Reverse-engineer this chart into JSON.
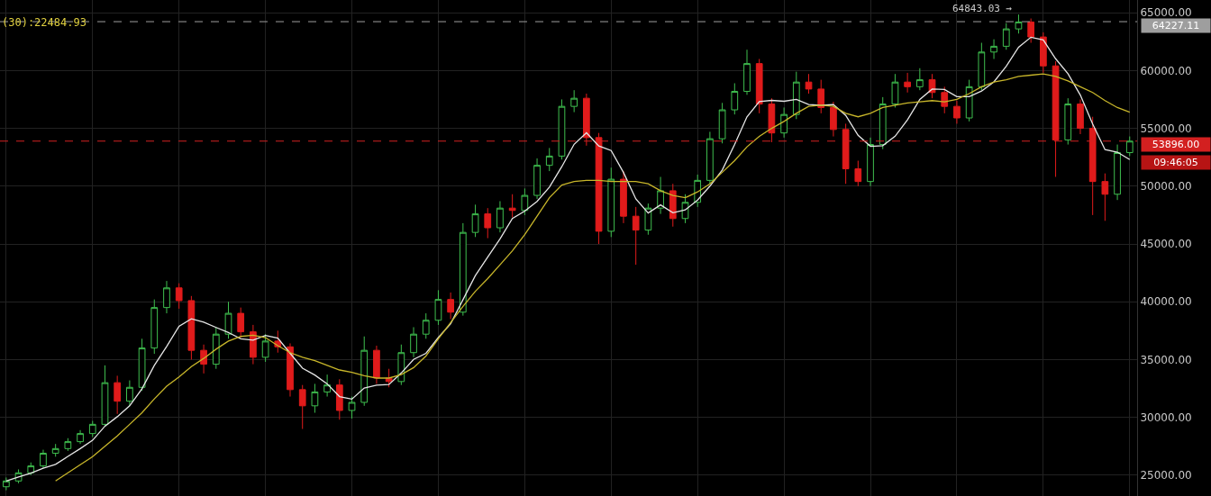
{
  "chart_data": {
    "type": "candlestick",
    "categories": [
      null,
      null,
      null,
      null,
      null,
      null,
      null,
      null,
      null,
      null,
      null,
      null,
      null,
      null,
      null,
      null,
      null,
      null,
      null,
      null,
      null,
      null,
      null,
      null,
      null,
      null,
      null,
      null,
      null,
      null,
      null,
      null,
      null,
      null,
      null,
      null,
      null,
      null,
      null,
      null,
      null,
      null,
      null,
      null,
      null,
      null,
      null,
      null,
      null,
      null,
      null,
      null,
      null,
      null,
      null,
      null,
      null,
      null,
      null,
      null,
      null,
      null,
      null,
      null,
      null,
      null,
      null,
      null,
      null,
      null,
      null,
      null,
      null,
      null,
      null,
      null,
      null,
      null,
      null,
      null,
      null,
      null,
      null,
      null,
      null,
      null,
      null,
      null,
      null,
      null,
      null,
      null
    ],
    "ohlc": [
      [
        24000,
        24800,
        23700,
        24500
      ],
      [
        24500,
        25500,
        24300,
        25200
      ],
      [
        25200,
        26100,
        25000,
        25800
      ],
      [
        25800,
        27200,
        25600,
        26900
      ],
      [
        26900,
        27700,
        26600,
        27300
      ],
      [
        27300,
        28200,
        27100,
        27900
      ],
      [
        27900,
        28900,
        27700,
        28600
      ],
      [
        28600,
        29700,
        28300,
        29400
      ],
      [
        29400,
        34500,
        29200,
        33000
      ],
      [
        33000,
        33600,
        30300,
        31400
      ],
      [
        31400,
        33200,
        31000,
        32600
      ],
      [
        32600,
        36800,
        32300,
        36000
      ],
      [
        36000,
        40200,
        35500,
        39500
      ],
      [
        39500,
        41800,
        39000,
        41200
      ],
      [
        41200,
        41600,
        39400,
        40100
      ],
      [
        40100,
        40500,
        35000,
        35800
      ],
      [
        35800,
        36300,
        33800,
        34600
      ],
      [
        34600,
        37800,
        34200,
        37200
      ],
      [
        37200,
        40000,
        36800,
        39000
      ],
      [
        39000,
        39500,
        36900,
        37400
      ],
      [
        37400,
        38000,
        34600,
        35200
      ],
      [
        35200,
        37200,
        34800,
        36600
      ],
      [
        36600,
        37500,
        35600,
        36100
      ],
      [
        36100,
        36400,
        31800,
        32400
      ],
      [
        32400,
        32800,
        29000,
        31000
      ],
      [
        31000,
        32900,
        30400,
        32200
      ],
      [
        32200,
        33700,
        31800,
        32800
      ],
      [
        32800,
        33300,
        29800,
        30600
      ],
      [
        30600,
        31800,
        29900,
        31300
      ],
      [
        31300,
        37000,
        31000,
        35800
      ],
      [
        35800,
        36200,
        32900,
        33400
      ],
      [
        33400,
        34200,
        32600,
        33100
      ],
      [
        33100,
        36300,
        32800,
        35600
      ],
      [
        35600,
        37800,
        35200,
        37200
      ],
      [
        37200,
        39000,
        36800,
        38400
      ],
      [
        38400,
        41000,
        38000,
        40200
      ],
      [
        40200,
        40800,
        38500,
        39100
      ],
      [
        39100,
        46800,
        38800,
        46000
      ],
      [
        46000,
        48400,
        45600,
        47600
      ],
      [
        47600,
        48100,
        45500,
        46400
      ],
      [
        46400,
        48700,
        46000,
        48100
      ],
      [
        48100,
        49300,
        47300,
        47900
      ],
      [
        47900,
        49800,
        47500,
        49200
      ],
      [
        49200,
        52400,
        48900,
        51800
      ],
      [
        51800,
        53300,
        51300,
        52600
      ],
      [
        52600,
        57500,
        52300,
        56900
      ],
      [
        56900,
        58300,
        56400,
        57600
      ],
      [
        57600,
        58000,
        53500,
        54200
      ],
      [
        54200,
        54600,
        45000,
        46100
      ],
      [
        46100,
        51600,
        45600,
        50600
      ],
      [
        50600,
        51300,
        46800,
        47400
      ],
      [
        47400,
        48200,
        43200,
        46200
      ],
      [
        46200,
        48500,
        45800,
        48100
      ],
      [
        48100,
        50800,
        47600,
        49600
      ],
      [
        49600,
        50200,
        46500,
        47200
      ],
      [
        47200,
        49300,
        46800,
        48600
      ],
      [
        48600,
        51000,
        48200,
        50500
      ],
      [
        50500,
        54700,
        50200,
        54100
      ],
      [
        54100,
        57200,
        53700,
        56600
      ],
      [
        56600,
        58900,
        56200,
        58200
      ],
      [
        58200,
        61800,
        57900,
        60600
      ],
      [
        60600,
        61000,
        56300,
        57100
      ],
      [
        57100,
        57600,
        53800,
        54600
      ],
      [
        54600,
        56800,
        54200,
        56200
      ],
      [
        56200,
        59900,
        55800,
        59000
      ],
      [
        59000,
        59700,
        58000,
        58400
      ],
      [
        58400,
        59200,
        56300,
        56800
      ],
      [
        56800,
        57300,
        54300,
        54900
      ],
      [
        54900,
        55400,
        50200,
        51500
      ],
      [
        51500,
        52200,
        50000,
        50400
      ],
      [
        50400,
        54200,
        50000,
        53600
      ],
      [
        53600,
        57700,
        53200,
        57100
      ],
      [
        57100,
        59700,
        56800,
        59000
      ],
      [
        59000,
        59800,
        58100,
        58600
      ],
      [
        58600,
        60200,
        58300,
        59200
      ],
      [
        59200,
        59700,
        57600,
        58100
      ],
      [
        58100,
        58600,
        56300,
        56900
      ],
      [
        56900,
        57400,
        55400,
        55900
      ],
      [
        55900,
        59200,
        55600,
        58600
      ],
      [
        58600,
        62400,
        58300,
        61600
      ],
      [
        61600,
        62700,
        61000,
        62100
      ],
      [
        62100,
        64100,
        61800,
        63600
      ],
      [
        63600,
        64843.03,
        63200,
        64200
      ],
      [
        64200,
        64500,
        62400,
        62900
      ],
      [
        62900,
        63300,
        59800,
        60400
      ],
      [
        60400,
        60800,
        50800,
        54000
      ],
      [
        54000,
        57600,
        53600,
        57100
      ],
      [
        57100,
        57500,
        54500,
        55000
      ],
      [
        55000,
        56000,
        47500,
        50400
      ],
      [
        50400,
        51100,
        47000,
        49300
      ],
      [
        49300,
        53600,
        48800,
        52900
      ],
      [
        52900,
        54300,
        52600,
        53896
      ]
    ],
    "colors": [
      "#3fbf4f",
      "#3fbf4f",
      "#3fbf4f",
      "#3fbf4f",
      "#3fbf4f",
      "#3fbf4f",
      "#3fbf4f",
      "#3fbf4f",
      "#3fbf4f",
      "#e01b1b",
      "#3fbf4f",
      "#3fbf4f",
      "#3fbf4f",
      "#3fbf4f",
      "#e01b1b",
      "#e01b1b",
      "#e01b1b",
      "#3fbf4f",
      "#3fbf4f",
      "#e01b1b",
      "#e01b1b",
      "#3fbf4f",
      "#e01b1b",
      "#e01b1b",
      "#e01b1b",
      "#3fbf4f",
      "#3fbf4f",
      "#e01b1b",
      "#3fbf4f",
      "#3fbf4f",
      "#e01b1b",
      "#e01b1b",
      "#3fbf4f",
      "#3fbf4f",
      "#3fbf4f",
      "#3fbf4f",
      "#e01b1b",
      "#3fbf4f",
      "#3fbf4f",
      "#e01b1b",
      "#3fbf4f",
      "#e01b1b",
      "#3fbf4f",
      "#3fbf4f",
      "#3fbf4f",
      "#3fbf4f",
      "#3fbf4f",
      "#e01b1b",
      "#e01b1b",
      "#3fbf4f",
      "#e01b1b",
      "#e01b1b",
      "#3fbf4f",
      "#3fbf4f",
      "#e01b1b",
      "#3fbf4f",
      "#3fbf4f",
      "#3fbf4f",
      "#3fbf4f",
      "#3fbf4f",
      "#3fbf4f",
      "#e01b1b",
      "#e01b1b",
      "#3fbf4f",
      "#3fbf4f",
      "#e01b1b",
      "#e01b1b",
      "#e01b1b",
      "#e01b1b",
      "#e01b1b",
      "#3fbf4f",
      "#3fbf4f",
      "#3fbf4f",
      "#e01b1b",
      "#3fbf4f",
      "#e01b1b",
      "#e01b1b",
      "#e01b1b",
      "#3fbf4f",
      "#3fbf4f",
      "#3fbf4f",
      "#3fbf4f",
      "#3fbf4f",
      "#e01b1b",
      "#e01b1b",
      "#e01b1b",
      "#3fbf4f",
      "#e01b1b",
      "#e01b1b",
      "#e01b1b",
      "#3fbf4f",
      "#3fbf4f"
    ],
    "series": [
      {
        "type": "line",
        "color": "#e6e6e6",
        "values": [
          24500,
          24850,
          25170,
          25600,
          25940,
          26620,
          27300,
          28020,
          29240,
          30060,
          31000,
          32480,
          34500,
          36140,
          37880,
          38520,
          38240,
          37780,
          37340,
          36800,
          36680,
          37080,
          36860,
          35540,
          34260,
          33660,
          32900,
          31800,
          31580,
          32540,
          32780,
          32840,
          33840,
          35020,
          35540,
          36900,
          38100,
          40180,
          42260,
          43860,
          45440,
          47200,
          47840,
          48680,
          49920,
          51680,
          53620,
          54620,
          53480,
          53080,
          51180,
          48900,
          47680,
          48380,
          47700,
          47940,
          48800,
          50000,
          51400,
          53600,
          56000,
          57320,
          57420,
          57340,
          57500,
          57060,
          57000,
          57060,
          56120,
          54400,
          53440,
          53500,
          54320,
          55740,
          57500,
          58400,
          58360,
          57740,
          57740,
          58220,
          59020,
          60360,
          62020,
          62880,
          62640,
          61020,
          59720,
          57880,
          55380,
          53160,
          52940,
          52300
        ]
      },
      {
        "type": "line",
        "color": "#c8b62a",
        "values": [
          null,
          null,
          null,
          null,
          24500,
          25200,
          25900,
          26600,
          27500,
          28400,
          29400,
          30400,
          31600,
          32700,
          33500,
          34400,
          35100,
          35900,
          36600,
          37000,
          37100,
          36900,
          36200,
          35600,
          35200,
          34900,
          34500,
          34100,
          33900,
          33600,
          33400,
          33400,
          33700,
          34300,
          35300,
          36800,
          38200,
          39600,
          40900,
          42000,
          43200,
          44400,
          45800,
          47400,
          49000,
          50100,
          50400,
          50500,
          50500,
          50400,
          50400,
          50400,
          50200,
          49600,
          49200,
          49000,
          49500,
          50200,
          51200,
          52200,
          53400,
          54300,
          55000,
          55600,
          56300,
          56900,
          57000,
          56900,
          56300,
          56000,
          56300,
          56800,
          57000,
          57200,
          57300,
          57400,
          57300,
          57500,
          58000,
          58600,
          59000,
          59200,
          59500,
          59600,
          59700,
          59500,
          59100,
          58600,
          58100,
          57400,
          56800,
          56400
        ]
      }
    ],
    "ylim": [
      23200,
      66100
    ],
    "yticks": [
      {
        "value": 25000,
        "label": "25000.00"
      },
      {
        "value": 30000,
        "label": "30000.00"
      },
      {
        "value": 35000,
        "label": "35000.00"
      },
      {
        "value": 40000,
        "label": "40000.00"
      },
      {
        "value": 45000,
        "label": "45000.00"
      },
      {
        "value": 50000,
        "label": "50000.00"
      },
      {
        "value": 55000,
        "label": "55000.00"
      },
      {
        "value": 60000,
        "label": "60000.00"
      },
      {
        "value": 65000,
        "label": "65000.00"
      }
    ],
    "ref_lines": [
      {
        "axis": "y",
        "value": 64227.11,
        "label": "64227.11",
        "color": "#9e9e9e",
        "line_style": "dashed"
      },
      {
        "axis": "y",
        "value": 53896,
        "label": "53896.00",
        "color": "#d32020",
        "line_style": "dashed"
      }
    ],
    "annotations": [
      "(30):22484.93",
      "64843.03 →",
      "09:46:05"
    ],
    "grid": true,
    "tick_labels": "y",
    "line_style": "solid",
    "marker": "none"
  }
}
